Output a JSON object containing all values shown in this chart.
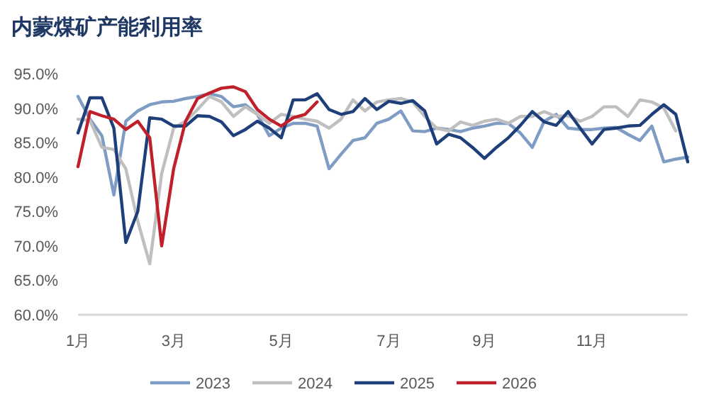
{
  "chart_data": {
    "type": "line",
    "title": "内蒙煤矿产能利用率",
    "categories": [
      "1月",
      null,
      null,
      null,
      null,
      null,
      null,
      null,
      "3月",
      null,
      null,
      null,
      null,
      null,
      null,
      null,
      null,
      "5月",
      null,
      null,
      null,
      null,
      null,
      null,
      null,
      null,
      "7月",
      null,
      null,
      null,
      null,
      null,
      null,
      null,
      "9月",
      null,
      null,
      null,
      null,
      null,
      null,
      null,
      null,
      "11月",
      null,
      null,
      null,
      null,
      null,
      null,
      null,
      null
    ],
    "ylim": [
      60,
      95
    ],
    "yticks": [
      {
        "value": 60,
        "label": "60.0%"
      },
      {
        "value": 65,
        "label": "65.0%"
      },
      {
        "value": 70,
        "label": "70.0%"
      },
      {
        "value": 75,
        "label": "75.0%"
      },
      {
        "value": 80,
        "label": "80.0%"
      },
      {
        "value": 85,
        "label": "85.0%"
      },
      {
        "value": 90,
        "label": "90.0%"
      },
      {
        "value": 95,
        "label": "95.0%"
      }
    ],
    "grid": false,
    "legend": "bottom",
    "marker": "none",
    "line_style": "solid",
    "series": [
      {
        "name": "2023",
        "color": "#7f9cc4",
        "values": [
          91.7,
          88.4,
          86,
          77.4,
          88.1,
          89.6,
          90.5,
          90.9,
          91,
          91.4,
          91.7,
          92.1,
          91.7,
          90.2,
          90.5,
          89.1,
          86,
          87.1,
          87.8,
          87.8,
          87.4,
          81.2,
          83.3,
          85.3,
          85.7,
          87.8,
          88.4,
          89.6,
          86.7,
          86.6,
          87.1,
          86.9,
          86.6,
          87.1,
          87.4,
          87.8,
          87.8,
          86.4,
          84.3,
          88.1,
          89.1,
          87.1,
          86.9,
          86.9,
          87.1,
          87.2,
          86.2,
          85.3,
          87.4,
          82.2,
          82.6,
          82.9
        ]
      },
      {
        "name": "2024",
        "color": "#bfbfbf",
        "values": [
          88.4,
          88.2,
          84.3,
          84,
          81.2,
          73.6,
          67.4,
          80.5,
          87.1,
          88.1,
          89.8,
          91.7,
          90.9,
          88.8,
          90.2,
          89.1,
          87.8,
          89.1,
          88.8,
          88.4,
          88.1,
          87.1,
          88.4,
          91.2,
          89.6,
          90.9,
          91.2,
          91.4,
          90.9,
          88.8,
          87.1,
          86.7,
          88,
          87.5,
          88.1,
          88.4,
          87.8,
          88.8,
          88.8,
          89.5,
          88.8,
          88.9,
          88.1,
          88.8,
          90.2,
          90.2,
          88.8,
          91.2,
          90.9,
          90,
          86.7,
          null
        ]
      },
      {
        "name": "2025",
        "color": "#1f3f7a",
        "values": [
          86.4,
          91.5,
          91.5,
          87.1,
          70.5,
          75,
          88.6,
          88.4,
          87.4,
          87.4,
          88.9,
          88.8,
          88,
          86,
          86.9,
          88.1,
          87.1,
          85.7,
          91.2,
          91.2,
          92.1,
          89.8,
          89.1,
          89.5,
          91.4,
          89.8,
          91,
          90.7,
          91.1,
          89.6,
          84.8,
          86.2,
          85.7,
          84.3,
          82.7,
          84.3,
          85.7,
          87.5,
          89.5,
          88,
          87.5,
          89.5,
          87.1,
          84.8,
          86.9,
          87.1,
          87.4,
          87.5,
          89.1,
          90.5,
          89.1,
          82.2
        ]
      },
      {
        "name": "2026",
        "color": "#c0202a",
        "values": [
          81.5,
          89.5,
          88.9,
          88.4,
          86.9,
          88.1,
          85.7,
          70,
          81.2,
          88.1,
          91.4,
          92.2,
          92.9,
          93.1,
          92.4,
          89.8,
          88.4,
          87.4,
          88.6,
          89.1,
          90.9,
          null,
          null,
          null,
          null,
          null,
          null,
          null,
          null,
          null,
          null,
          null,
          null,
          null,
          null,
          null,
          null,
          null,
          null,
          null,
          null,
          null,
          null,
          null,
          null,
          null,
          null,
          null,
          null,
          null,
          null,
          null
        ]
      }
    ]
  }
}
